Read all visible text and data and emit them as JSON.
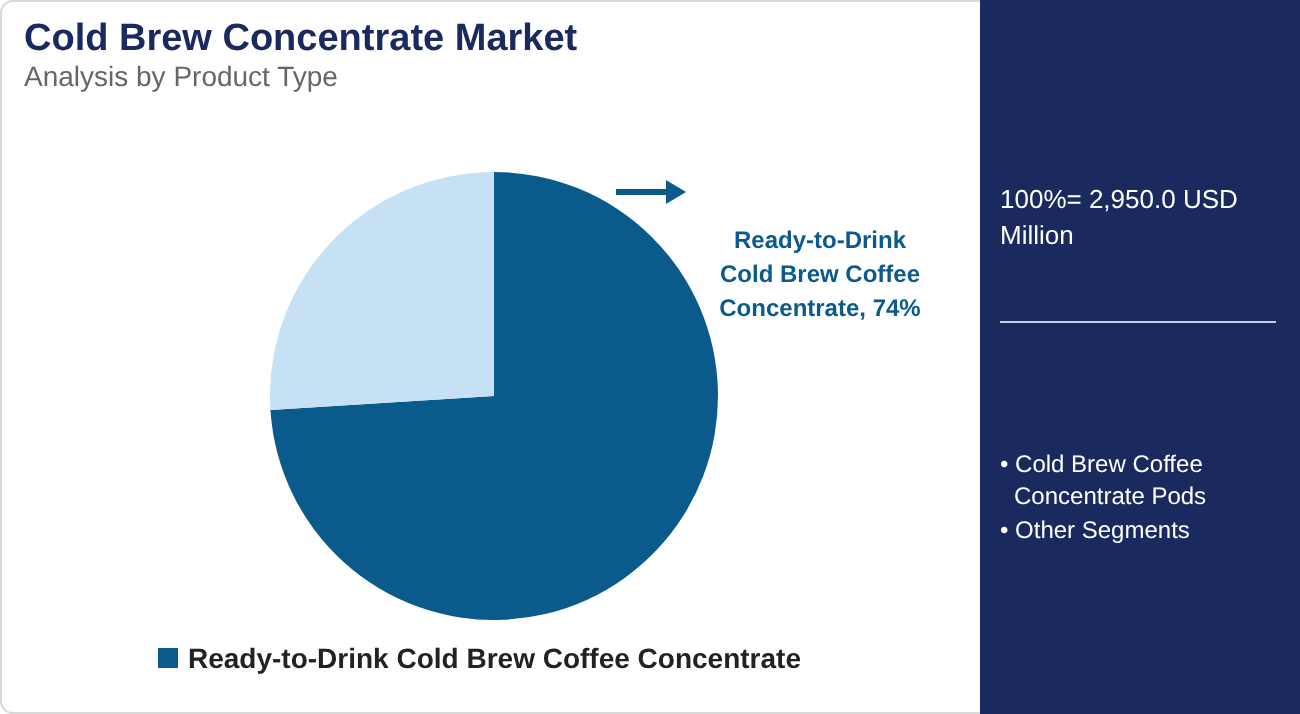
{
  "chart_data": {
    "type": "pie",
    "title": "Cold Brew Concentrate Market",
    "subtitle": "Analysis by Product Type",
    "categories": [
      "Ready-to-Drink Cold Brew Coffee Concentrate",
      null
    ],
    "values": [
      74,
      26
    ],
    "colors": [
      "#0b5a8c",
      "#c6e1f3"
    ],
    "value_labels": [
      "Ready-to-Drink Cold Brew Coffee Concentrate, 74%",
      null
    ],
    "legend": "bottom",
    "annotations": [
      "100%= 2,950.0 USD Million",
      "• Cold Brew Coffee Concentrate Pods",
      "• Other Segments"
    ]
  }
}
